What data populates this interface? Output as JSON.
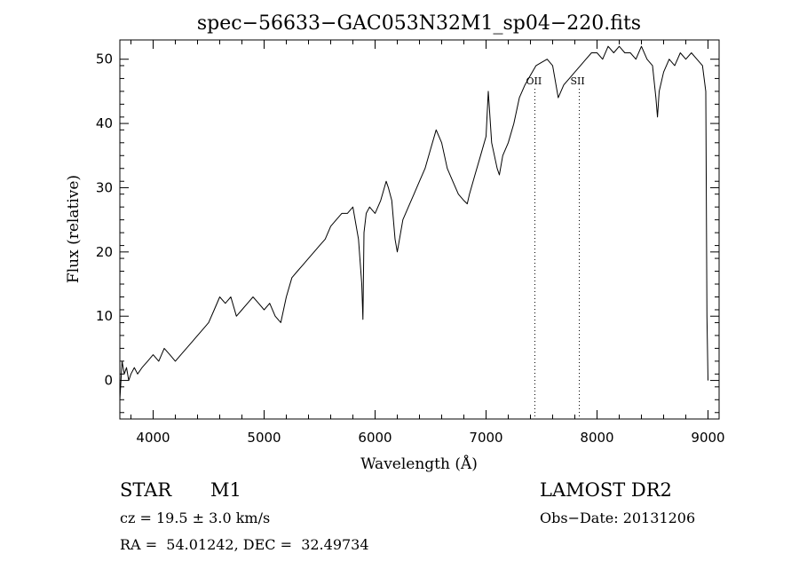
{
  "chart_data": {
    "type": "line",
    "title": "spec−56633−GAC053N32M1_sp04−220.fits",
    "xlabel": "Wavelength (Å)",
    "ylabel": "Flux (relative)",
    "xlim": [
      3700,
      9100
    ],
    "ylim": [
      -6,
      53
    ],
    "xticks": [
      4000,
      5000,
      6000,
      7000,
      8000,
      9000
    ],
    "yticks": [
      0,
      10,
      20,
      30,
      40,
      50
    ],
    "grid": false,
    "annotations": [
      {
        "text": "OII",
        "x": 7440
      },
      {
        "text": "SII",
        "x": 7840
      }
    ],
    "series": [
      {
        "x": [
          3700,
          3720,
          3740,
          3760,
          3780,
          3800,
          3830,
          3860,
          3900,
          3950,
          4000,
          4050,
          4100,
          4150,
          4200,
          4250,
          4300,
          4350,
          4400,
          4450,
          4500,
          4550,
          4600,
          4650,
          4700,
          4750,
          4800,
          4850,
          4900,
          4950,
          5000,
          5050,
          5100,
          5150,
          5200,
          5250,
          5300,
          5350,
          5400,
          5450,
          5500,
          5550,
          5600,
          5650,
          5700,
          5750,
          5800,
          5850,
          5880,
          5890,
          5895,
          5900,
          5920,
          5950,
          6000,
          6050,
          6100,
          6120,
          6150,
          6180,
          6200,
          6250,
          6300,
          6350,
          6400,
          6450,
          6500,
          6550,
          6600,
          6650,
          6700,
          6750,
          6800,
          6830,
          6850,
          6900,
          6950,
          7000,
          7020,
          7050,
          7100,
          7120,
          7150,
          7200,
          7250,
          7300,
          7350,
          7400,
          7450,
          7500,
          7550,
          7600,
          7650,
          7700,
          7750,
          7800,
          7850,
          7900,
          7950,
          8000,
          8050,
          8100,
          8150,
          8200,
          8250,
          8300,
          8350,
          8400,
          8450,
          8500,
          8530,
          8545,
          8560,
          8600,
          8650,
          8700,
          8750,
          8800,
          8850,
          8900,
          8950,
          8980,
          8990,
          9000
        ],
        "values": [
          -3,
          3,
          1,
          2,
          0,
          1,
          2,
          1,
          2,
          3,
          4,
          3,
          5,
          4,
          3,
          4,
          5,
          6,
          7,
          8,
          9,
          11,
          13,
          12,
          13,
          10,
          11,
          12,
          13,
          12,
          11,
          12,
          10,
          9,
          13,
          16,
          17,
          18,
          19,
          20,
          21,
          22,
          24,
          25,
          26,
          26,
          27,
          22,
          15,
          9.5,
          16,
          23,
          26,
          27,
          26,
          28,
          31,
          30,
          28,
          22,
          20,
          25,
          27,
          29,
          31,
          33,
          36,
          39,
          37,
          33,
          31,
          29,
          28,
          27.5,
          29,
          32,
          35,
          38,
          45,
          37,
          33,
          32,
          35,
          37,
          40,
          44,
          46,
          47.5,
          49,
          49.5,
          50,
          49,
          44,
          46,
          47,
          48,
          49,
          50,
          51,
          51,
          50,
          52,
          51,
          52,
          51,
          51,
          50,
          52,
          50,
          49,
          44,
          41,
          45,
          48,
          50,
          49,
          51,
          50,
          51,
          50,
          49,
          45,
          10,
          0
        ]
      }
    ]
  },
  "info": {
    "object_type": "STAR",
    "subclass": "M1",
    "survey": "LAMOST DR2",
    "cz": "cz = 19.5 ± 3.0 km/s",
    "obs_date": "Obs−Date: 20131206",
    "coords": "RA =  54.01242, DEC =  32.49734"
  }
}
